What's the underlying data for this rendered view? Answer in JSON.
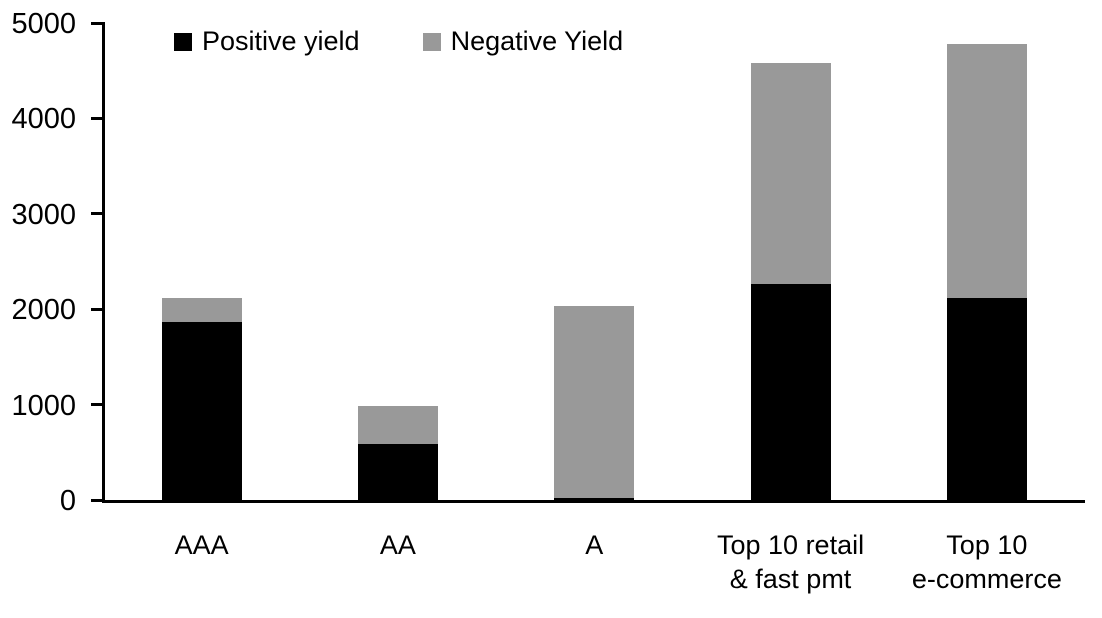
{
  "chart_data": {
    "type": "bar",
    "stacked": true,
    "title": "",
    "xlabel": "",
    "ylabel": "",
    "categories": [
      "AAA",
      "AA",
      "A",
      "Top 10 retail & fast pmt",
      "Top 10 e-commerce"
    ],
    "category_label_lines": [
      [
        "AAA"
      ],
      [
        "AA"
      ],
      [
        "A"
      ],
      [
        "Top 10 retail",
        "& fast pmt"
      ],
      [
        "Top 10",
        "e-commerce"
      ]
    ],
    "series": [
      {
        "name": "Positive yield",
        "color": "#000000",
        "values": [
          1890,
          610,
          40,
          2280,
          2140
        ]
      },
      {
        "name": "Negative Yield",
        "color": "#999999",
        "values": [
          230,
          380,
          1990,
          2300,
          2640
        ]
      }
    ],
    "totals": [
      2120,
      990,
      2030,
      4580,
      4780
    ],
    "ylim": [
      0,
      5000
    ],
    "yticks": [
      0,
      1000,
      2000,
      3000,
      4000,
      5000
    ],
    "ytick_labels": [
      "0",
      "1000",
      "2000",
      "3000",
      "4000",
      "5000"
    ],
    "grid": false,
    "legend_position": "top"
  },
  "legend": {
    "items": [
      {
        "label": "Positive yield",
        "color": "#000000"
      },
      {
        "label": "Negative Yield",
        "color": "#999999"
      }
    ]
  },
  "colors": {
    "axis": "#000000",
    "background": "#ffffff",
    "positive_series": "#000000",
    "negative_series": "#999999"
  }
}
